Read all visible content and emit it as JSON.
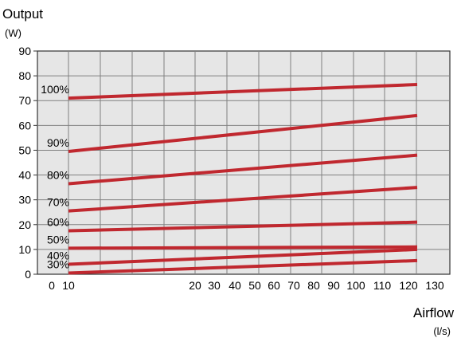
{
  "chart_data": {
    "type": "line",
    "title": "Output",
    "ylabel": "Output",
    "yunit": "(W)",
    "xlabel": "Airflow",
    "xunit": "(l/s)",
    "ylim": [
      0,
      90
    ],
    "grid": true,
    "y_ticks": [
      "0",
      "10",
      "20",
      "30",
      "40",
      "50",
      "60",
      "70",
      "80",
      "90"
    ],
    "x_ticks": [
      "0",
      "10",
      "20",
      "30",
      "40",
      "50",
      "60",
      "70",
      "80",
      "90",
      "100",
      "110",
      "120",
      "130"
    ],
    "x_range_shown": [
      "10",
      "120"
    ],
    "series": [
      {
        "name": "100%",
        "x": [
          "10",
          "120"
        ],
        "y": [
          71,
          76.5
        ]
      },
      {
        "name": "90%",
        "x": [
          "10",
          "120"
        ],
        "y": [
          49.5,
          64
        ]
      },
      {
        "name": "80%",
        "x": [
          "10",
          "120"
        ],
        "y": [
          36.5,
          48
        ]
      },
      {
        "name": "70%",
        "x": [
          "10",
          "120"
        ],
        "y": [
          25.5,
          35
        ]
      },
      {
        "name": "60%",
        "x": [
          "10",
          "120"
        ],
        "y": [
          17.5,
          21
        ]
      },
      {
        "name": "50%",
        "x": [
          "10",
          "120"
        ],
        "y": [
          10.5,
          11
        ]
      },
      {
        "name": "40%",
        "x": [
          "10",
          "120"
        ],
        "y": [
          4,
          10
        ]
      },
      {
        "name": "30%",
        "x": [
          "10",
          "120"
        ],
        "y": [
          0.5,
          5.5
        ]
      }
    ],
    "colors": {
      "line": "#c0282f",
      "grid": "#808080",
      "plot_bg": "#e6e6e6"
    }
  }
}
